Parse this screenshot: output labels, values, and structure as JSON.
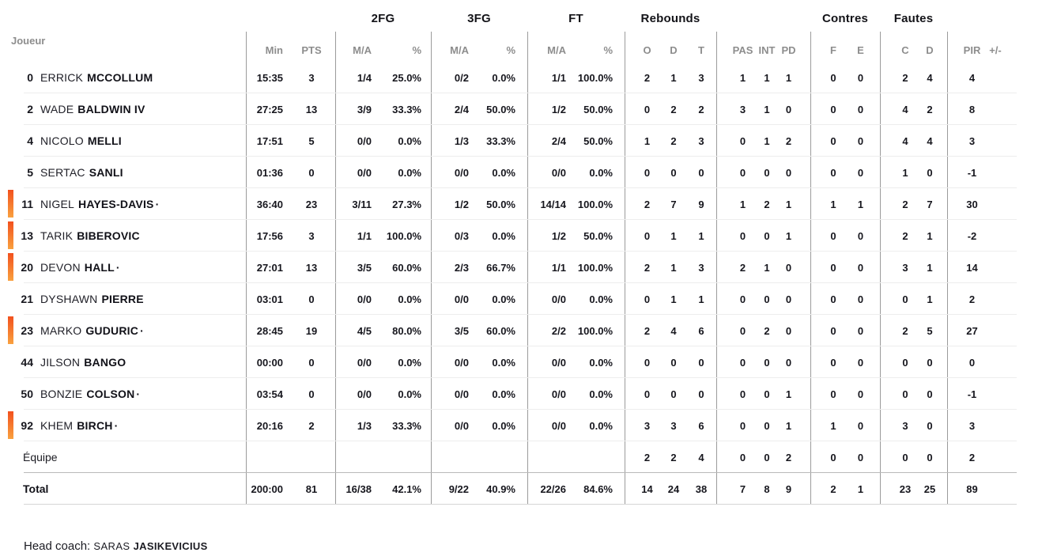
{
  "table": {
    "headers": {
      "joueur": "Joueur",
      "min": "Min",
      "pts": "PTS",
      "groups": {
        "fg2": "2FG",
        "fg3": "3FG",
        "ft": "FT",
        "rebounds": "Rebounds",
        "contres": "Contres",
        "fautes": "Fautes"
      },
      "ma2": "M/A",
      "pct2": "%",
      "ma3": "M/A",
      "pct3": "%",
      "maft": "M/A",
      "pctft": "%",
      "reb_o": "O",
      "reb_d": "D",
      "reb_t": "T",
      "pas": "PAS",
      "int": "INT",
      "pd": "PD",
      "blk_f": "F",
      "blk_e": "E",
      "foul_c": "C",
      "foul_d": "D",
      "pir": "PIR",
      "plusminus": "+/-"
    },
    "players": [
      {
        "number": "0",
        "first": "ERRICK",
        "last": "MCCOLLUM",
        "starter": false,
        "oncourt": false,
        "min": "15:35",
        "pts": "3",
        "fg2_ma": "1/4",
        "fg2_pct": "25.0%",
        "fg3_ma": "0/2",
        "fg3_pct": "0.0%",
        "ft_ma": "1/1",
        "ft_pct": "100.0%",
        "reb_o": "2",
        "reb_d": "1",
        "reb_t": "3",
        "pas": "1",
        "int": "1",
        "pd": "1",
        "blk_f": "0",
        "blk_e": "0",
        "foul_c": "2",
        "foul_d": "4",
        "pir": "4",
        "pm": ""
      },
      {
        "number": "2",
        "first": "WADE",
        "last": "BALDWIN IV",
        "starter": false,
        "oncourt": false,
        "min": "27:25",
        "pts": "13",
        "fg2_ma": "3/9",
        "fg2_pct": "33.3%",
        "fg3_ma": "2/4",
        "fg3_pct": "50.0%",
        "ft_ma": "1/2",
        "ft_pct": "50.0%",
        "reb_o": "0",
        "reb_d": "2",
        "reb_t": "2",
        "pas": "3",
        "int": "1",
        "pd": "0",
        "blk_f": "0",
        "blk_e": "0",
        "foul_c": "4",
        "foul_d": "2",
        "pir": "8",
        "pm": ""
      },
      {
        "number": "4",
        "first": "NICOLO",
        "last": "MELLI",
        "starter": false,
        "oncourt": false,
        "min": "17:51",
        "pts": "5",
        "fg2_ma": "0/0",
        "fg2_pct": "0.0%",
        "fg3_ma": "1/3",
        "fg3_pct": "33.3%",
        "ft_ma": "2/4",
        "ft_pct": "50.0%",
        "reb_o": "1",
        "reb_d": "2",
        "reb_t": "3",
        "pas": "0",
        "int": "1",
        "pd": "2",
        "blk_f": "0",
        "blk_e": "0",
        "foul_c": "4",
        "foul_d": "4",
        "pir": "3",
        "pm": ""
      },
      {
        "number": "5",
        "first": "SERTAC",
        "last": "SANLI",
        "starter": false,
        "oncourt": false,
        "min": "01:36",
        "pts": "0",
        "fg2_ma": "0/0",
        "fg2_pct": "0.0%",
        "fg3_ma": "0/0",
        "fg3_pct": "0.0%",
        "ft_ma": "0/0",
        "ft_pct": "0.0%",
        "reb_o": "0",
        "reb_d": "0",
        "reb_t": "0",
        "pas": "0",
        "int": "0",
        "pd": "0",
        "blk_f": "0",
        "blk_e": "0",
        "foul_c": "1",
        "foul_d": "0",
        "pir": "-1",
        "pm": ""
      },
      {
        "number": "11",
        "first": "NIGEL",
        "last": "HAYES-DAVIS",
        "starter": true,
        "oncourt": true,
        "min": "36:40",
        "pts": "23",
        "fg2_ma": "3/11",
        "fg2_pct": "27.3%",
        "fg3_ma": "1/2",
        "fg3_pct": "50.0%",
        "ft_ma": "14/14",
        "ft_pct": "100.0%",
        "reb_o": "2",
        "reb_d": "7",
        "reb_t": "9",
        "pas": "1",
        "int": "2",
        "pd": "1",
        "blk_f": "1",
        "blk_e": "1",
        "foul_c": "2",
        "foul_d": "7",
        "pir": "30",
        "pm": ""
      },
      {
        "number": "13",
        "first": "TARIK",
        "last": "BIBEROVIC",
        "starter": false,
        "oncourt": true,
        "min": "17:56",
        "pts": "3",
        "fg2_ma": "1/1",
        "fg2_pct": "100.0%",
        "fg3_ma": "0/3",
        "fg3_pct": "0.0%",
        "ft_ma": "1/2",
        "ft_pct": "50.0%",
        "reb_o": "0",
        "reb_d": "1",
        "reb_t": "1",
        "pas": "0",
        "int": "0",
        "pd": "1",
        "blk_f": "0",
        "blk_e": "0",
        "foul_c": "2",
        "foul_d": "1",
        "pir": "-2",
        "pm": ""
      },
      {
        "number": "20",
        "first": "DEVON",
        "last": "HALL",
        "starter": true,
        "oncourt": true,
        "min": "27:01",
        "pts": "13",
        "fg2_ma": "3/5",
        "fg2_pct": "60.0%",
        "fg3_ma": "2/3",
        "fg3_pct": "66.7%",
        "ft_ma": "1/1",
        "ft_pct": "100.0%",
        "reb_o": "2",
        "reb_d": "1",
        "reb_t": "3",
        "pas": "2",
        "int": "1",
        "pd": "0",
        "blk_f": "0",
        "blk_e": "0",
        "foul_c": "3",
        "foul_d": "1",
        "pir": "14",
        "pm": ""
      },
      {
        "number": "21",
        "first": "DYSHAWN",
        "last": "PIERRE",
        "starter": false,
        "oncourt": false,
        "min": "03:01",
        "pts": "0",
        "fg2_ma": "0/0",
        "fg2_pct": "0.0%",
        "fg3_ma": "0/0",
        "fg3_pct": "0.0%",
        "ft_ma": "0/0",
        "ft_pct": "0.0%",
        "reb_o": "0",
        "reb_d": "1",
        "reb_t": "1",
        "pas": "0",
        "int": "0",
        "pd": "0",
        "blk_f": "0",
        "blk_e": "0",
        "foul_c": "0",
        "foul_d": "1",
        "pir": "2",
        "pm": ""
      },
      {
        "number": "23",
        "first": "MARKO",
        "last": "GUDURIC",
        "starter": true,
        "oncourt": true,
        "min": "28:45",
        "pts": "19",
        "fg2_ma": "4/5",
        "fg2_pct": "80.0%",
        "fg3_ma": "3/5",
        "fg3_pct": "60.0%",
        "ft_ma": "2/2",
        "ft_pct": "100.0%",
        "reb_o": "2",
        "reb_d": "4",
        "reb_t": "6",
        "pas": "0",
        "int": "2",
        "pd": "0",
        "blk_f": "0",
        "blk_e": "0",
        "foul_c": "2",
        "foul_d": "5",
        "pir": "27",
        "pm": ""
      },
      {
        "number": "44",
        "first": "JILSON",
        "last": "BANGO",
        "starter": false,
        "oncourt": false,
        "min": "00:00",
        "pts": "0",
        "fg2_ma": "0/0",
        "fg2_pct": "0.0%",
        "fg3_ma": "0/0",
        "fg3_pct": "0.0%",
        "ft_ma": "0/0",
        "ft_pct": "0.0%",
        "reb_o": "0",
        "reb_d": "0",
        "reb_t": "0",
        "pas": "0",
        "int": "0",
        "pd": "0",
        "blk_f": "0",
        "blk_e": "0",
        "foul_c": "0",
        "foul_d": "0",
        "pir": "0",
        "pm": ""
      },
      {
        "number": "50",
        "first": "BONZIE",
        "last": "COLSON",
        "starter": true,
        "oncourt": false,
        "min": "03:54",
        "pts": "0",
        "fg2_ma": "0/0",
        "fg2_pct": "0.0%",
        "fg3_ma": "0/0",
        "fg3_pct": "0.0%",
        "ft_ma": "0/0",
        "ft_pct": "0.0%",
        "reb_o": "0",
        "reb_d": "0",
        "reb_t": "0",
        "pas": "0",
        "int": "0",
        "pd": "1",
        "blk_f": "0",
        "blk_e": "0",
        "foul_c": "0",
        "foul_d": "0",
        "pir": "-1",
        "pm": ""
      },
      {
        "number": "92",
        "first": "KHEM",
        "last": "BIRCH",
        "starter": true,
        "oncourt": true,
        "min": "20:16",
        "pts": "2",
        "fg2_ma": "1/3",
        "fg2_pct": "33.3%",
        "fg3_ma": "0/0",
        "fg3_pct": "0.0%",
        "ft_ma": "0/0",
        "ft_pct": "0.0%",
        "reb_o": "3",
        "reb_d": "3",
        "reb_t": "6",
        "pas": "0",
        "int": "0",
        "pd": "1",
        "blk_f": "1",
        "blk_e": "0",
        "foul_c": "3",
        "foul_d": "0",
        "pir": "3",
        "pm": ""
      }
    ],
    "team_row": {
      "label": "Équipe",
      "min": "",
      "pts": "",
      "fg2_ma": "",
      "fg2_pct": "",
      "fg3_ma": "",
      "fg3_pct": "",
      "ft_ma": "",
      "ft_pct": "",
      "reb_o": "2",
      "reb_d": "2",
      "reb_t": "4",
      "pas": "0",
      "int": "0",
      "pd": "2",
      "blk_f": "0",
      "blk_e": "0",
      "foul_c": "0",
      "foul_d": "0",
      "pir": "2",
      "pm": ""
    },
    "total_row": {
      "label": "Total",
      "min": "200:00",
      "pts": "81",
      "fg2_ma": "16/38",
      "fg2_pct": "42.1%",
      "fg3_ma": "9/22",
      "fg3_pct": "40.9%",
      "ft_ma": "22/26",
      "ft_pct": "84.6%",
      "reb_o": "14",
      "reb_d": "24",
      "reb_t": "38",
      "pas": "7",
      "int": "8",
      "pd": "9",
      "blk_f": "2",
      "blk_e": "1",
      "foul_c": "23",
      "foul_d": "25",
      "pir": "89",
      "pm": ""
    }
  },
  "markers": {
    "starter_dot": "·"
  },
  "colors": {
    "accent_bar_top": "#f2511e",
    "accent_bar_bottom": "#f9a13f",
    "header_gray": "#8d8d8d",
    "line_gray": "#9b9b9b"
  },
  "footer": {
    "head_coach_label": "Head coach:",
    "coach_first": "SARAS",
    "coach_last": "JASIKEVICIUS"
  }
}
